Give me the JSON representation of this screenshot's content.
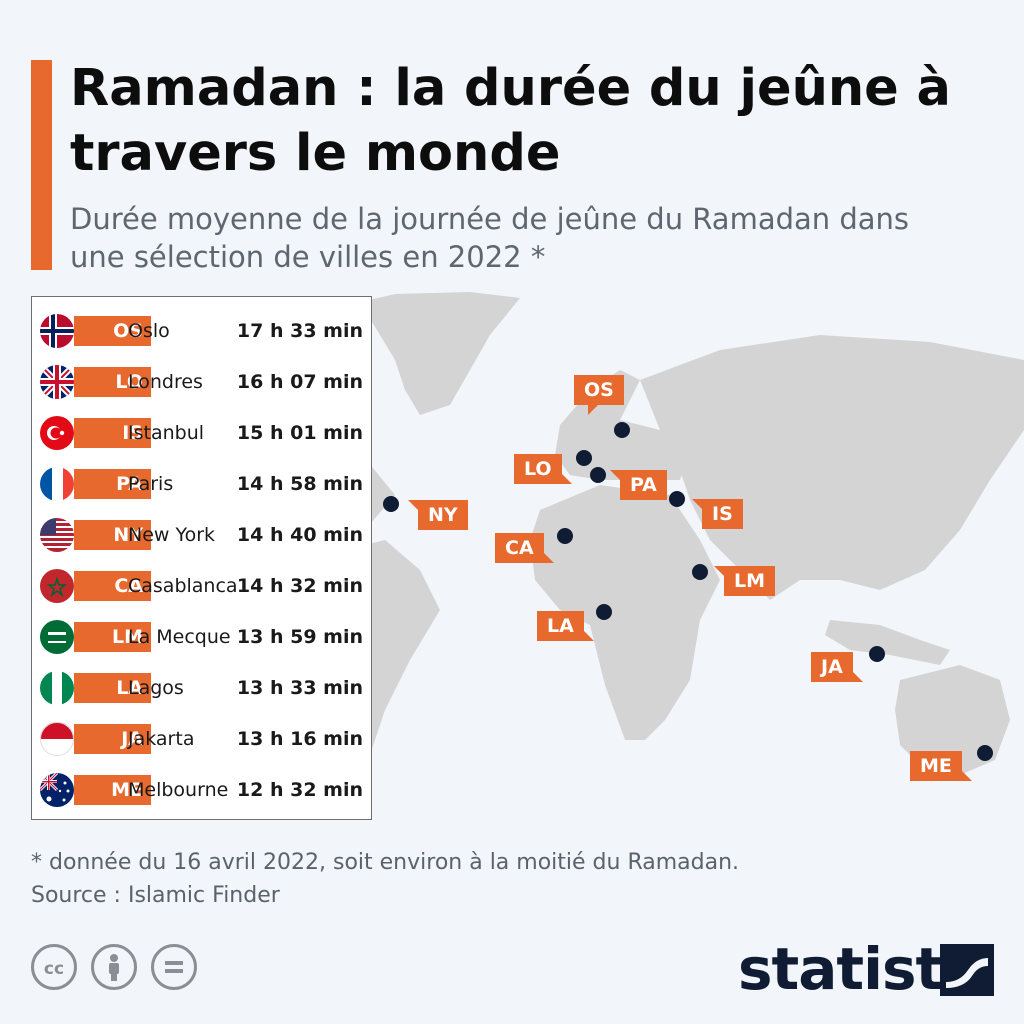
{
  "header": {
    "title": "Ramadan : la durée du jeûne à travers le monde",
    "subtitle": "Durée moyenne de la journée de jeûne du Ramadan dans une sélection de villes en 2022 *"
  },
  "legend": [
    {
      "code": "OS",
      "city": "Oslo",
      "duration": "17 h 33 min"
    },
    {
      "code": "LO",
      "city": "Londres",
      "duration": "16 h 07 min"
    },
    {
      "code": "IS",
      "city": "Istanbul",
      "duration": "15 h 01 min"
    },
    {
      "code": "PA",
      "city": "Paris",
      "duration": "14 h 58 min"
    },
    {
      "code": "NY",
      "city": "New York",
      "duration": "14 h 40 min"
    },
    {
      "code": "CA",
      "city": "Casablanca",
      "duration": "14 h 32 min"
    },
    {
      "code": "LM",
      "city": "La Mecque",
      "duration": "13 h 59 min"
    },
    {
      "code": "LA",
      "city": "Lagos",
      "duration": "13 h 33 min"
    },
    {
      "code": "JA",
      "city": "Jakarta",
      "duration": "13 h 16 min"
    },
    {
      "code": "ME",
      "city": "Melbourne",
      "duration": "12 h 32 min"
    }
  ],
  "map_labels": {
    "OS": "OS",
    "LO": "LO",
    "PA": "PA",
    "IS": "IS",
    "NY": "NY",
    "CA": "CA",
    "LM": "LM",
    "LA": "LA",
    "JA": "JA",
    "ME": "ME"
  },
  "colors": {
    "accent": "#e8692e",
    "pin": "#0f1c33",
    "land": "#d4d4d4",
    "background": "#f2f5f9"
  },
  "footer": {
    "footnote": "* donnée du 16 avril 2022, soit environ à la moitié du Ramadan.",
    "source": "Source : Islamic Finder",
    "logo": "statista"
  },
  "icons": [
    "cc-icon",
    "by-icon",
    "nd-icon",
    "statista-logo-icon"
  ]
}
